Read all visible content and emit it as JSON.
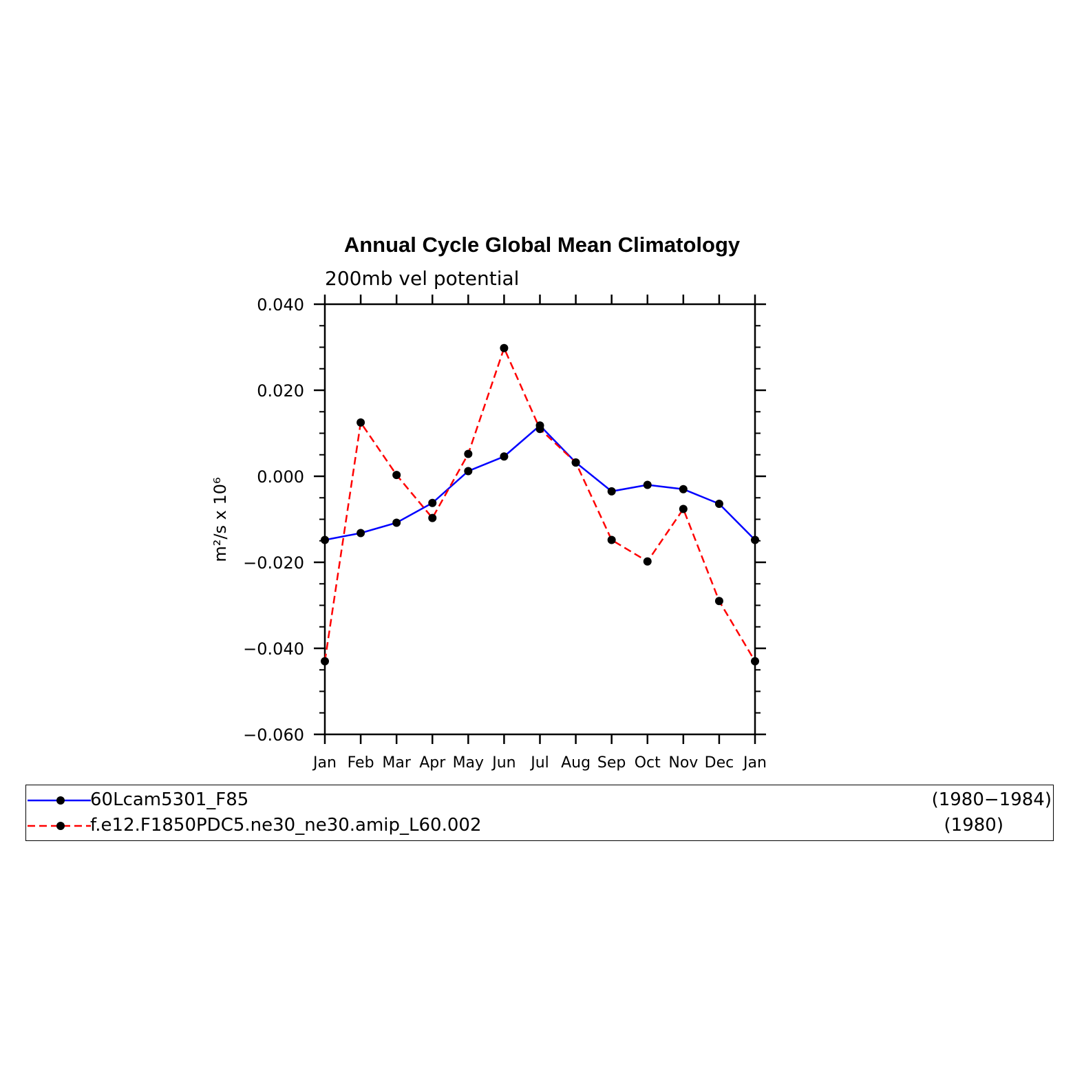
{
  "chart_data": {
    "type": "line",
    "title": "Annual Cycle Global Mean Climatology",
    "subtitle": "200mb vel potential",
    "ylabel": "m²/s x 10⁶",
    "xlabel": "",
    "categories": [
      "Jan",
      "Feb",
      "Mar",
      "Apr",
      "May",
      "Jun",
      "Jul",
      "Aug",
      "Sep",
      "Oct",
      "Nov",
      "Dec",
      "Jan"
    ],
    "ylim": [
      -0.06,
      0.04
    ],
    "yticks": [
      "0.040",
      "0.020",
      "0.000",
      "−0.020",
      "−0.040",
      "−0.060"
    ],
    "ytick_values": [
      0.04,
      0.02,
      0.0,
      -0.02,
      -0.04,
      -0.06
    ],
    "series": [
      {
        "name": "60Lcam5301_F85",
        "period": "(1980−1984)",
        "color": "#0000ff",
        "style": "solid",
        "values": [
          -0.0148,
          -0.0132,
          -0.0108,
          -0.0062,
          0.0012,
          0.0046,
          0.0118,
          0.0032,
          -0.0035,
          -0.002,
          -0.003,
          -0.0064,
          -0.0148
        ]
      },
      {
        "name": "f.e12.F1850PDC5.ne30_ne30.amip_L60.002",
        "period": "(1980)",
        "color": "#ff0000",
        "style": "dashed",
        "values": [
          -0.043,
          0.0125,
          0.0003,
          -0.0097,
          0.0052,
          0.0298,
          0.011,
          0.0032,
          -0.0148,
          -0.0198,
          -0.0076,
          -0.029,
          -0.043
        ]
      }
    ],
    "legend_position": "bottom",
    "grid": false
  }
}
